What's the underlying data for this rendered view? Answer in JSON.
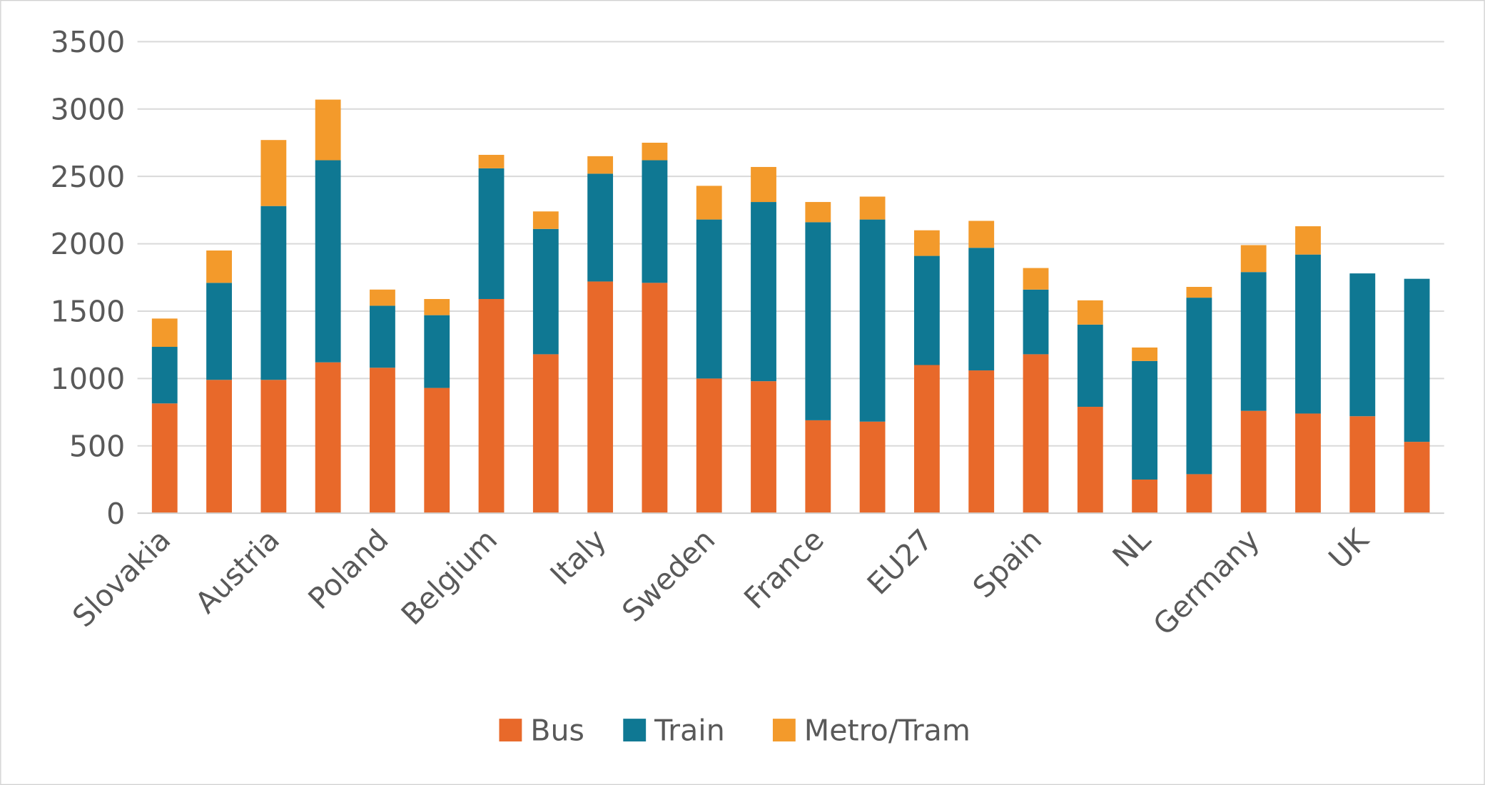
{
  "chart_data": {
    "type": "bar",
    "stacked": true,
    "title": "",
    "xlabel": "",
    "ylabel": "",
    "ylim": [
      0,
      3500
    ],
    "yticks": [
      0,
      500,
      1000,
      1500,
      2000,
      2500,
      3000,
      3500
    ],
    "grid": true,
    "legend_position": "bottom",
    "categories": [
      "Slovakia",
      "",
      "Austria",
      "",
      "Poland",
      "",
      "Belgium",
      "",
      "Italy",
      "",
      "Sweden",
      "",
      "France",
      "",
      "EU27",
      "",
      "Spain",
      "",
      "NL",
      "",
      "Germany",
      "",
      "UK",
      ""
    ],
    "series": [
      {
        "name": "Bus",
        "color": "#E8692A",
        "values": [
          815,
          990,
          990,
          1120,
          1080,
          930,
          1590,
          1180,
          1720,
          1710,
          1000,
          980,
          690,
          680,
          1100,
          1060,
          1180,
          790,
          250,
          290,
          760,
          740,
          720,
          530
        ]
      },
      {
        "name": "Train",
        "color": "#0F7893",
        "values": [
          420,
          720,
          1290,
          1500,
          460,
          540,
          970,
          930,
          800,
          910,
          1180,
          1330,
          1470,
          1500,
          810,
          910,
          480,
          610,
          880,
          1310,
          1030,
          1180,
          1060,
          1210
        ]
      },
      {
        "name": "Metro/Tram",
        "color": "#F39A2B",
        "values": [
          210,
          240,
          490,
          450,
          120,
          120,
          100,
          130,
          130,
          130,
          250,
          260,
          150,
          170,
          190,
          200,
          160,
          180,
          100,
          80,
          200,
          210,
          0,
          0
        ]
      }
    ]
  }
}
